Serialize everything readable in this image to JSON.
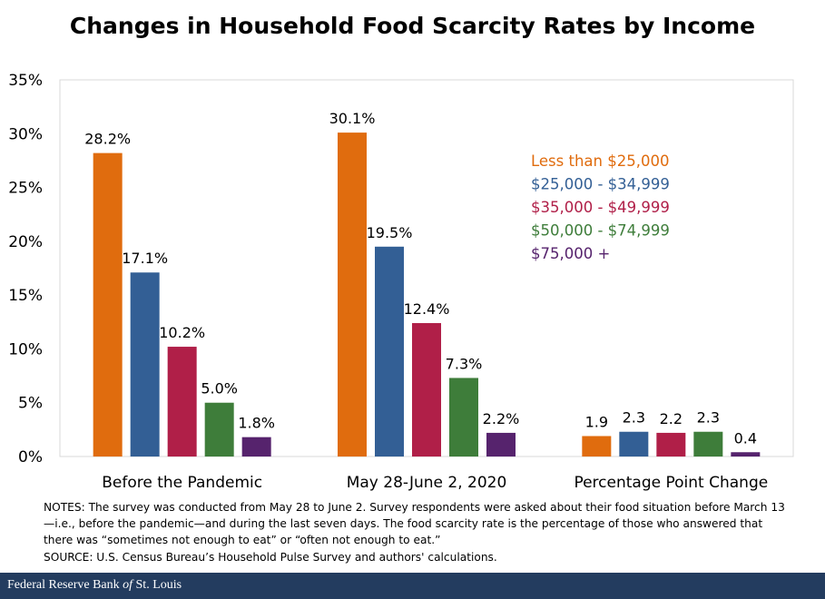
{
  "chart_data": {
    "type": "bar",
    "title": "Changes in Household Food Scarcity Rates by Income",
    "categories": [
      "Before the Pandemic",
      "May 28-June 2, 2020",
      "Percentage Point Change"
    ],
    "series": [
      {
        "name": "Less than $25,000",
        "color": "#e06c0e",
        "values": [
          28.2,
          30.1,
          1.9
        ],
        "labels": [
          "28.2%",
          "30.1%",
          "1.9"
        ]
      },
      {
        "name": "$25,000 - $34,999",
        "color": "#335f95",
        "values": [
          17.1,
          19.5,
          2.3
        ],
        "labels": [
          "17.1%",
          "19.5%",
          "2.3"
        ]
      },
      {
        "name": "$35,000 - $49,999",
        "color": "#b01f48",
        "values": [
          10.2,
          12.4,
          2.2
        ],
        "labels": [
          "10.2%",
          "12.4%",
          "2.2"
        ]
      },
      {
        "name": "$50,000 - $74,999",
        "color": "#3e7d3a",
        "values": [
          5.0,
          7.3,
          2.3
        ],
        "labels": [
          "5.0%",
          "7.3%",
          "2.3"
        ]
      },
      {
        "name": "$75,000 +",
        "color": "#56236d",
        "values": [
          1.8,
          2.2,
          0.4
        ],
        "labels": [
          "1.8%",
          "2.2%",
          "0.4"
        ]
      }
    ],
    "ylim": [
      0,
      35
    ],
    "yticks": [
      0,
      5,
      10,
      15,
      20,
      25,
      30,
      35
    ],
    "ytick_labels": [
      "0%",
      "5%",
      "10%",
      "15%",
      "20%",
      "25%",
      "30%",
      "35%"
    ],
    "xlabel": "",
    "ylabel": "",
    "grid": false,
    "legend_position": "top-right"
  },
  "notes": {
    "text": "NOTES: The survey was conducted from May 28 to June 2. Survey respondents were asked about their food situation before March 13—i.e., before the pandemic—and during the last seven days. The food scarcity rate is the percentage of those who answered that there was “sometimes not enough to eat” or “often not enough to eat.”",
    "source": "SOURCE: U.S. Census Bureau’s Household Pulse Survey and authors' calculations."
  },
  "footer": {
    "org_prefix": "Federal Reserve Bank ",
    "org_of": "of",
    "org_suffix": " St. Louis"
  }
}
